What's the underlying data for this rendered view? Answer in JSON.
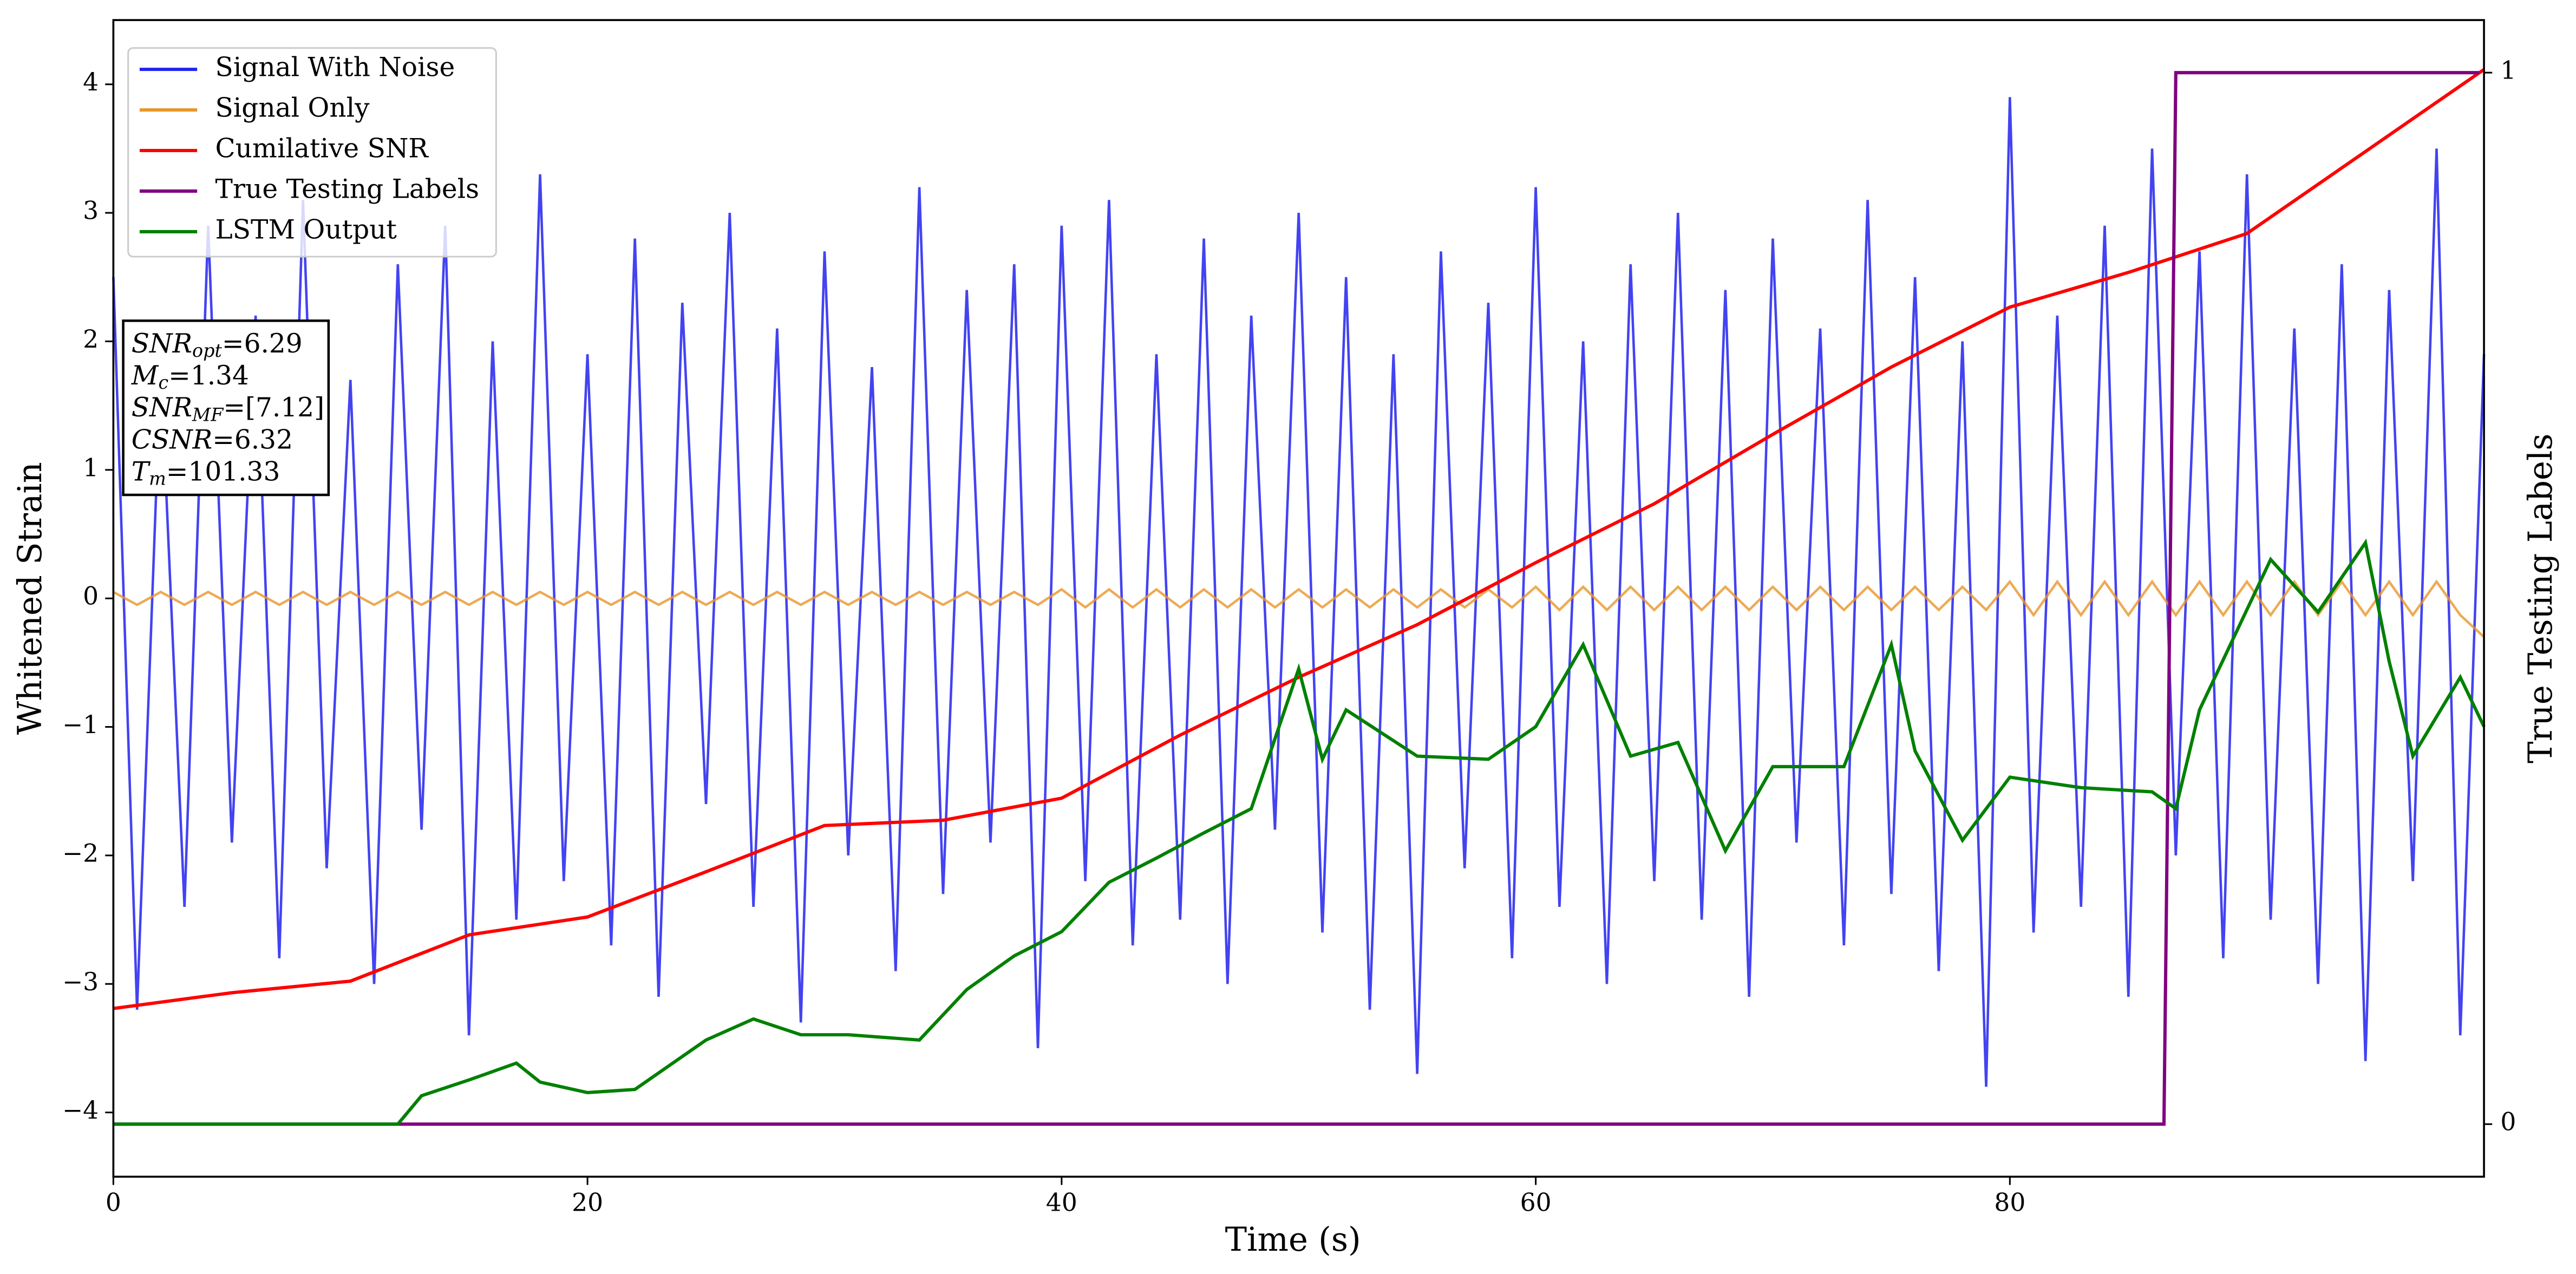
{
  "chart_data": {
    "type": "line",
    "xlabel": "Time (s)",
    "ylabel": "Whitened Strain",
    "y2label": "True Testing Labels",
    "xlim": [
      0,
      100
    ],
    "xticks": [
      0,
      20,
      40,
      60,
      80
    ],
    "ylim": [
      -4.5,
      4.5
    ],
    "yticks": [
      {
        "value": -4,
        "label": "−4"
      },
      {
        "value": -3,
        "label": "−3"
      },
      {
        "value": -2,
        "label": "−2"
      },
      {
        "value": -1,
        "label": "−1"
      },
      0,
      1,
      2,
      3,
      4
    ],
    "y2lim": [
      -0.05,
      1.05
    ],
    "y2ticks": [
      0,
      1
    ],
    "legend": "upper left",
    "annotation": [
      {
        "base": "SNR",
        "sub": "opt",
        "rest": "=6.29"
      },
      {
        "base": "M",
        "sub": "c",
        "rest": "=1.34"
      },
      {
        "base": "SNR",
        "sub": "MF",
        "rest": "=[7.12]"
      },
      {
        "base": "CSNR",
        "sub": "",
        "rest": "=6.32"
      },
      {
        "base": "T",
        "sub": "m",
        "rest": "=101.33"
      }
    ],
    "series": [
      {
        "name": "Signal With Noise",
        "color": "#2222ee",
        "x": [
          0,
          1,
          2,
          3,
          4,
          5,
          6,
          7,
          8,
          9,
          10,
          11,
          12,
          13,
          14,
          15,
          16,
          17,
          18,
          19,
          20,
          21,
          22,
          23,
          24,
          25,
          26,
          27,
          28,
          29,
          30,
          31,
          32,
          33,
          34,
          35,
          36,
          37,
          38,
          39,
          40,
          41,
          42,
          43,
          44,
          45,
          46,
          47,
          48,
          49,
          50,
          51,
          52,
          53,
          54,
          55,
          56,
          57,
          58,
          59,
          60,
          61,
          62,
          63,
          64,
          65,
          66,
          67,
          68,
          69,
          70,
          71,
          72,
          73,
          74,
          75,
          76,
          77,
          78,
          79,
          80,
          81,
          82,
          83,
          84,
          85,
          86,
          87,
          88,
          89,
          90,
          91,
          92,
          93,
          94,
          95,
          96,
          97,
          98,
          99,
          100
        ],
        "values": [
          2.5,
          -3.2,
          1.8,
          -2.4,
          2.9,
          -1.9,
          2.2,
          -2.8,
          3.1,
          -2.1,
          1.7,
          -3.0,
          2.6,
          -1.8,
          2.9,
          -3.4,
          2.0,
          -2.5,
          3.3,
          -2.2,
          1.9,
          -2.7,
          2.8,
          -3.1,
          2.3,
          -1.6,
          3.0,
          -2.4,
          2.1,
          -3.3,
          2.7,
          -2.0,
          1.8,
          -2.9,
          3.2,
          -2.3,
          2.4,
          -1.9,
          2.6,
          -3.5,
          2.9,
          -2.2,
          3.1,
          -2.7,
          1.9,
          -2.5,
          2.8,
          -3.0,
          2.2,
          -1.8,
          3.0,
          -2.6,
          2.5,
          -3.2,
          1.9,
          -3.7,
          2.7,
          -2.1,
          2.3,
          -2.8,
          3.2,
          -2.4,
          2.0,
          -3.0,
          2.6,
          -2.2,
          3.0,
          -2.5,
          2.4,
          -3.1,
          2.8,
          -1.9,
          2.1,
          -2.7,
          3.1,
          -2.3,
          2.5,
          -2.9,
          2.0,
          -3.8,
          3.9,
          -2.6,
          2.2,
          -2.4,
          2.9,
          -3.1,
          3.5,
          -2.0,
          2.7,
          -2.8,
          3.3,
          -2.5,
          2.1,
          -3.0,
          2.6,
          -3.6,
          2.4,
          -2.2,
          3.5,
          -3.4,
          1.9
        ]
      },
      {
        "name": "Signal Only",
        "color": "#e8962a",
        "x": [
          0,
          1,
          2,
          3,
          4,
          5,
          6,
          7,
          8,
          9,
          10,
          11,
          12,
          13,
          14,
          15,
          16,
          17,
          18,
          19,
          20,
          21,
          22,
          23,
          24,
          25,
          26,
          27,
          28,
          29,
          30,
          31,
          32,
          33,
          34,
          35,
          36,
          37,
          38,
          39,
          40,
          41,
          42,
          43,
          44,
          45,
          46,
          47,
          48,
          49,
          50,
          51,
          52,
          53,
          54,
          55,
          56,
          57,
          58,
          59,
          60,
          61,
          62,
          63,
          64,
          65,
          66,
          67,
          68,
          69,
          70,
          71,
          72,
          73,
          74,
          75,
          76,
          77,
          78,
          79,
          80,
          81,
          82,
          83,
          84,
          85,
          86,
          87,
          88,
          89,
          90,
          91,
          92,
          93,
          94,
          95,
          96,
          97,
          98,
          99,
          100
        ],
        "values": [
          0.05,
          -0.05,
          0.05,
          -0.05,
          0.05,
          -0.05,
          0.05,
          -0.05,
          0.05,
          -0.05,
          0.05,
          -0.05,
          0.05,
          -0.05,
          0.05,
          -0.05,
          0.05,
          -0.05,
          0.05,
          -0.05,
          0.05,
          -0.05,
          0.05,
          -0.05,
          0.05,
          -0.05,
          0.05,
          -0.05,
          0.05,
          -0.05,
          0.05,
          -0.05,
          0.05,
          -0.05,
          0.05,
          -0.05,
          0.05,
          -0.05,
          0.05,
          -0.05,
          0.07,
          -0.07,
          0.07,
          -0.07,
          0.07,
          -0.07,
          0.07,
          -0.07,
          0.07,
          -0.07,
          0.07,
          -0.07,
          0.07,
          -0.07,
          0.07,
          -0.07,
          0.07,
          -0.07,
          0.07,
          -0.07,
          0.09,
          -0.09,
          0.09,
          -0.09,
          0.09,
          -0.09,
          0.09,
          -0.09,
          0.09,
          -0.09,
          0.09,
          -0.09,
          0.09,
          -0.09,
          0.09,
          -0.09,
          0.09,
          -0.09,
          0.09,
          -0.09,
          0.13,
          -0.13,
          0.13,
          -0.13,
          0.13,
          -0.13,
          0.13,
          -0.13,
          0.13,
          -0.13,
          0.13,
          -0.13,
          0.13,
          -0.13,
          0.13,
          -0.13,
          0.13,
          -0.13,
          0.13,
          -0.13,
          -0.3
        ]
      },
      {
        "name": "Cumilative SNR",
        "color": "red",
        "axis": "y2",
        "x": [
          0,
          5,
          10,
          15,
          20,
          25,
          30,
          35,
          40,
          45,
          50,
          55,
          60,
          65,
          70,
          75,
          80,
          85,
          90,
          95,
          100
        ],
        "values": [
          0.11,
          0.125,
          0.136,
          0.18,
          0.197,
          0.24,
          0.284,
          0.289,
          0.31,
          0.37,
          0.425,
          0.475,
          0.534,
          0.59,
          0.656,
          0.72,
          0.777,
          0.81,
          0.847,
          0.925,
          1.003
        ]
      },
      {
        "name": "True Testing Labels",
        "color": "purple",
        "axis": "y2",
        "x": [
          0,
          86.5,
          87,
          99.8
        ],
        "values": [
          0,
          0,
          1,
          1
        ]
      },
      {
        "name": "LSTM Output",
        "color": "green",
        "axis": "y2",
        "x": [
          0,
          12,
          13,
          15,
          17,
          18,
          20,
          22,
          25,
          27,
          29,
          31,
          34,
          36,
          38,
          40,
          42,
          44,
          46,
          48,
          50,
          51,
          52,
          55,
          58,
          60,
          62,
          64,
          66,
          68,
          70,
          73,
          75,
          76,
          78,
          80,
          83,
          86,
          87,
          88,
          91,
          93,
          95,
          96,
          97,
          99,
          100
        ],
        "values": [
          0,
          0,
          0.027,
          0.042,
          0.058,
          0.04,
          0.03,
          0.033,
          0.08,
          0.1,
          0.085,
          0.085,
          0.08,
          0.128,
          0.16,
          0.183,
          0.23,
          0.253,
          0.277,
          0.3,
          0.433,
          0.347,
          0.394,
          0.35,
          0.347,
          0.378,
          0.456,
          0.35,
          0.363,
          0.26,
          0.34,
          0.34,
          0.456,
          0.355,
          0.27,
          0.33,
          0.32,
          0.316,
          0.3,
          0.394,
          0.537,
          0.487,
          0.553,
          0.44,
          0.35,
          0.425,
          0.378
        ]
      }
    ]
  }
}
